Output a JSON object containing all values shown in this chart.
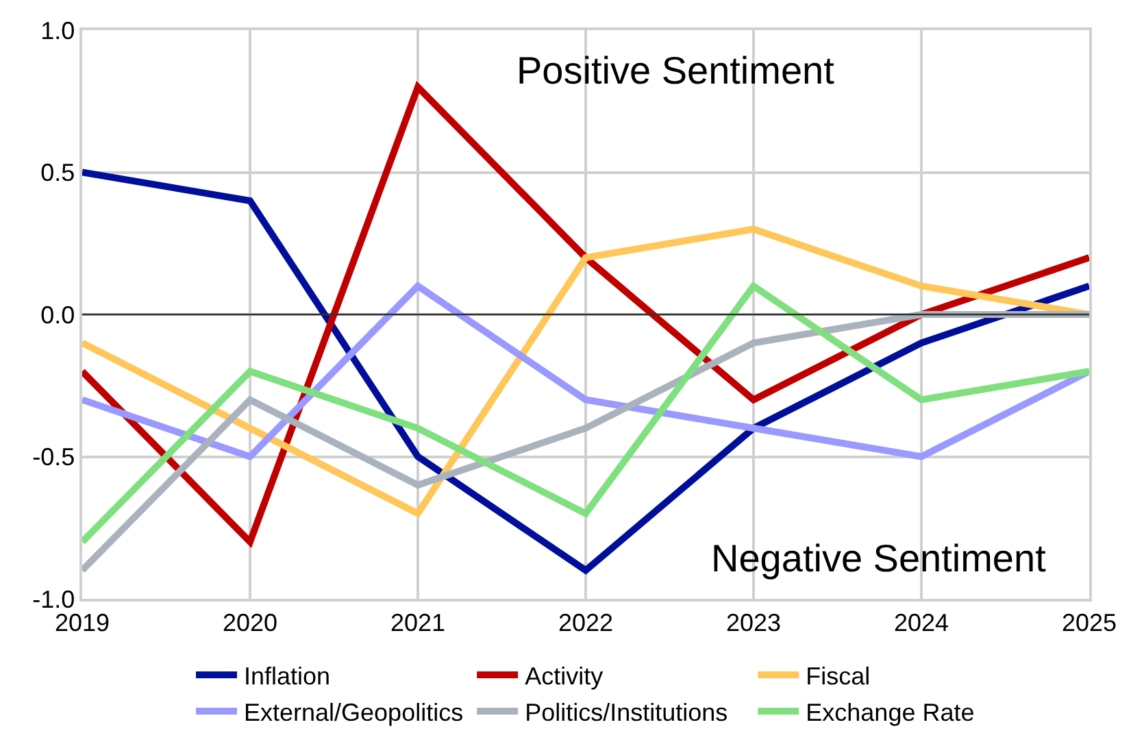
{
  "chart_data": {
    "type": "line",
    "x": [
      2019,
      2020,
      2021,
      2022,
      2023,
      2024,
      2025
    ],
    "xlim": [
      2019,
      2025
    ],
    "xticks": [
      2019,
      2020,
      2021,
      2022,
      2023,
      2024,
      2025
    ],
    "ylim": [
      -1.0,
      1.0
    ],
    "yticks": [
      {
        "value": -1.0,
        "label": "-1.0"
      },
      {
        "value": -0.5,
        "label": "-0.5"
      },
      {
        "value": 0.0,
        "label": "0.0"
      },
      {
        "value": 0.5,
        "label": "0.5"
      },
      {
        "value": 1.0,
        "label": "1.0"
      }
    ],
    "grid": true,
    "legend": "bottom",
    "marker": "none",
    "line_style": "solid",
    "ref_lines": [
      {
        "axis": "y",
        "value": 0,
        "color": "#333333"
      }
    ],
    "annotations": [
      "Positive Sentiment",
      "Negative Sentiment"
    ],
    "series": [
      {
        "name": "Inflation",
        "color": "#000f99",
        "values": [
          0.5,
          0.4,
          -0.5,
          -0.9,
          -0.4,
          -0.1,
          0.1
        ]
      },
      {
        "name": "Activity",
        "color": "#c00000",
        "values": [
          -0.2,
          -0.8,
          0.8,
          0.2,
          -0.3,
          0.0,
          0.2
        ]
      },
      {
        "name": "Fiscal",
        "color": "#ffc659",
        "values": [
          -0.1,
          -0.4,
          -0.7,
          0.2,
          0.3,
          0.1,
          0.0
        ]
      },
      {
        "name": "External/Geopolitics",
        "color": "#9999ff",
        "values": [
          -0.3,
          -0.5,
          0.1,
          -0.3,
          -0.4,
          -0.5,
          -0.2
        ]
      },
      {
        "name": "Politics/Institutions",
        "color": "#aab3bd",
        "values": [
          -0.9,
          -0.3,
          -0.6,
          -0.4,
          -0.1,
          0.0,
          0.0
        ]
      },
      {
        "name": "Exchange Rate",
        "color": "#80e080",
        "values": [
          -0.8,
          -0.2,
          -0.4,
          -0.7,
          0.1,
          -0.3,
          -0.2
        ]
      }
    ]
  }
}
